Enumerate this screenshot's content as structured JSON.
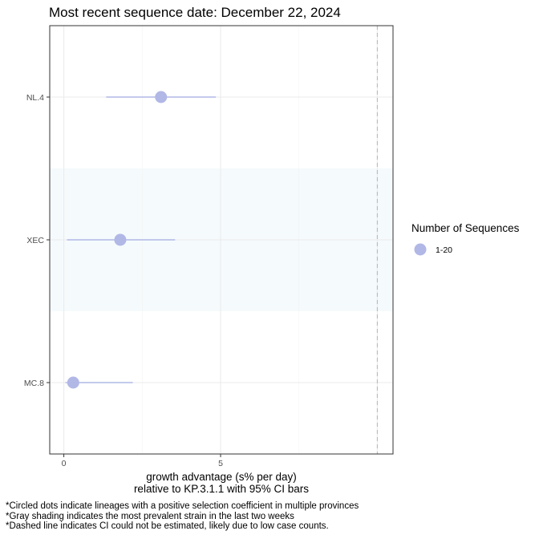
{
  "chart_data": {
    "type": "scatter",
    "title": "Most recent sequence date: December 22, 2024",
    "xlabel_line1": "growth advantage (s% per day)",
    "xlabel_line2": "relative to  KP.3.1.1  with 95% CI bars",
    "x_ticks": [
      0,
      5
    ],
    "xlim": [
      -0.45,
      10.5
    ],
    "grid": true,
    "categories": [
      "NL.4",
      "XEC",
      "MC.8"
    ],
    "points": [
      {
        "lineage": "NL.4",
        "estimate": 3.1,
        "ci_low": 1.35,
        "ci_high": 4.85,
        "shaded": false
      },
      {
        "lineage": "XEC",
        "estimate": 1.8,
        "ci_low": 0.1,
        "ci_high": 3.55,
        "shaded": true
      },
      {
        "lineage": "MC.8",
        "estimate": 0.3,
        "ci_low": 0.05,
        "ci_high": 2.2,
        "shaded": false
      }
    ],
    "dashed_line_x": 10.0,
    "legend": {
      "title": "Number of Sequences",
      "placement": "right",
      "items": [
        {
          "label": "1-20",
          "color": "#b1b8e6"
        }
      ]
    },
    "colors": {
      "point": "#b1b8e6",
      "ci": "#b1b8e6",
      "shade": "#f5fafc",
      "dashed": "#bdbdbd"
    }
  },
  "footnotes": [
    "*Circled dots indicate lineages with a positive selection coefficient in multiple provinces",
    "*Gray shading indicates the most prevalent strain in the last two weeks",
    "*Dashed line indicates CI could not be estimated, likely due to low case counts."
  ]
}
